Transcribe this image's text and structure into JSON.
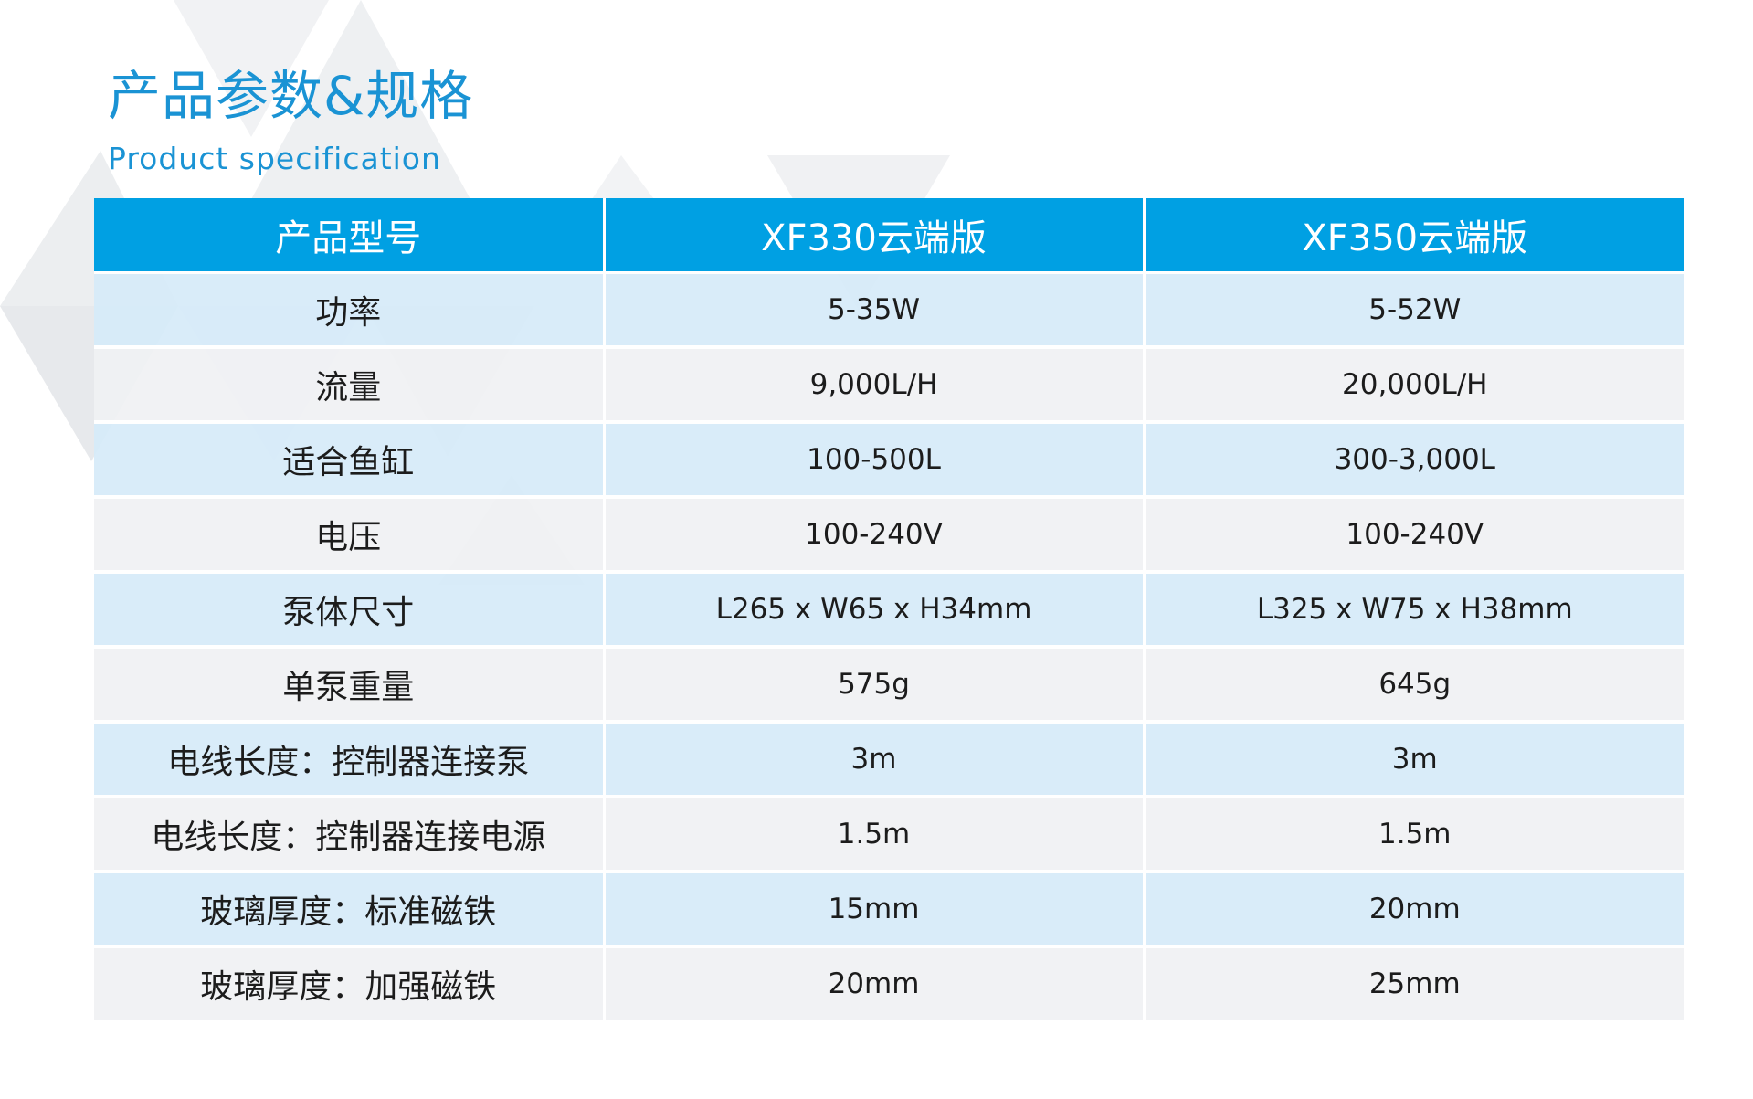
{
  "heading": {
    "title_cn": "产品参数&规格",
    "title_en": "Product specification"
  },
  "colors": {
    "accent": "#00a0e3",
    "title": "#1a93d4",
    "row_blue": "#d6eaf8",
    "row_grey": "#f0f1f3",
    "decor_grey": "#eceef0"
  },
  "table": {
    "headers": [
      "产品型号",
      "XF330云端版",
      "XF350云端版"
    ],
    "rows": [
      {
        "label": "功率",
        "values": [
          "5-35W",
          "5-52W"
        ]
      },
      {
        "label": "流量",
        "values": [
          "9,000L/H",
          "20,000L/H"
        ]
      },
      {
        "label": "适合鱼缸",
        "values": [
          "100-500L",
          "300-3,000L"
        ]
      },
      {
        "label": "电压",
        "values": [
          "100-240V",
          "100-240V"
        ]
      },
      {
        "label": "泵体尺寸",
        "values": [
          "L265 x W65 x H34mm",
          "L325 x W75 x H38mm"
        ]
      },
      {
        "label": "单泵重量",
        "values": [
          "575g",
          "645g"
        ]
      },
      {
        "label": "电线长度：控制器连接泵",
        "values": [
          "3m",
          "3m"
        ]
      },
      {
        "label": "电线长度：控制器连接电源",
        "values": [
          "1.5m",
          "1.5m"
        ]
      },
      {
        "label": "玻璃厚度：标准磁铁",
        "values": [
          "15mm",
          "20mm"
        ]
      },
      {
        "label": "玻璃厚度：加强磁铁",
        "values": [
          "20mm",
          "25mm"
        ]
      }
    ]
  }
}
